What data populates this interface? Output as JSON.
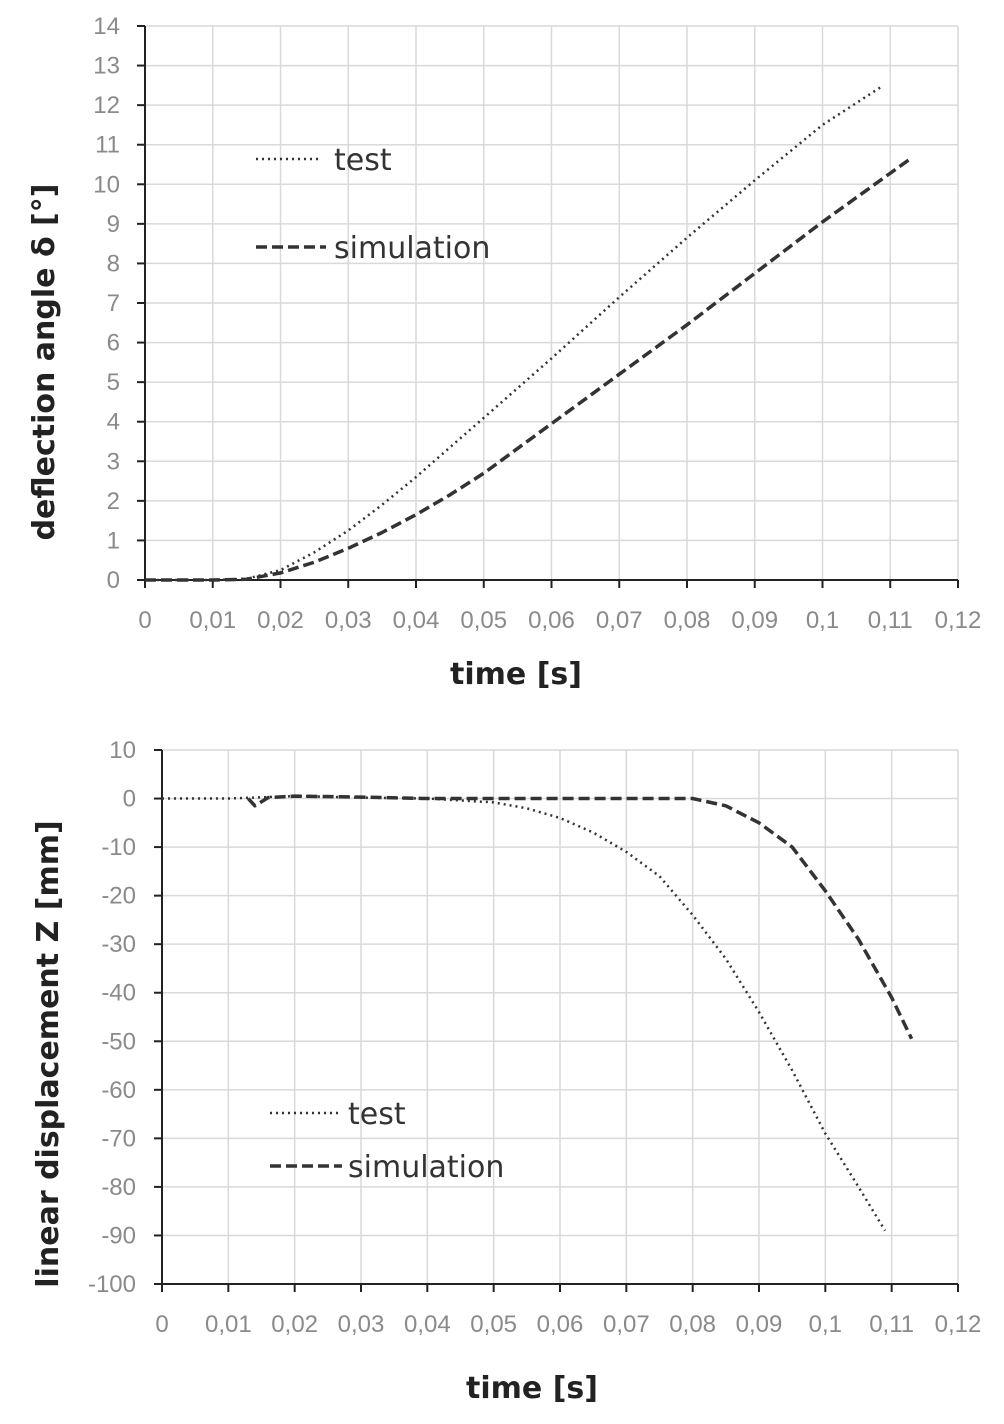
{
  "chart_data": [
    {
      "type": "line",
      "xlabel": "time [s]",
      "ylabel": "deflection angle δ [°]",
      "xlim": [
        0,
        0.12
      ],
      "ylim": [
        0,
        14
      ],
      "x_ticks": [
        "0",
        "0,01",
        "0,02",
        "0,03",
        "0,04",
        "0,05",
        "0,06",
        "0,07",
        "0,08",
        "0,09",
        "0,1",
        "0,11",
        "0,12"
      ],
      "y_ticks": [
        "0",
        "1",
        "2",
        "3",
        "4",
        "5",
        "6",
        "7",
        "8",
        "9",
        "10",
        "11",
        "12",
        "13",
        "14"
      ],
      "grid": true,
      "legend_position": "top-left",
      "series": [
        {
          "name": "test",
          "style": "dotted",
          "color": "#333333",
          "points": [
            [
              0,
              0
            ],
            [
              0.01,
              0
            ],
            [
              0.015,
              0.03
            ],
            [
              0.02,
              0.25
            ],
            [
              0.025,
              0.7
            ],
            [
              0.03,
              1.25
            ],
            [
              0.035,
              1.9
            ],
            [
              0.04,
              2.6
            ],
            [
              0.045,
              3.35
            ],
            [
              0.05,
              4.1
            ],
            [
              0.06,
              5.6
            ],
            [
              0.07,
              7.15
            ],
            [
              0.08,
              8.65
            ],
            [
              0.09,
              10.1
            ],
            [
              0.1,
              11.5
            ],
            [
              0.109,
              12.5
            ]
          ]
        },
        {
          "name": "simulation",
          "style": "dashed",
          "color": "#333333",
          "points": [
            [
              0,
              0
            ],
            [
              0.01,
              0
            ],
            [
              0.015,
              0.02
            ],
            [
              0.02,
              0.18
            ],
            [
              0.025,
              0.45
            ],
            [
              0.03,
              0.8
            ],
            [
              0.035,
              1.2
            ],
            [
              0.04,
              1.65
            ],
            [
              0.045,
              2.15
            ],
            [
              0.05,
              2.7
            ],
            [
              0.06,
              3.95
            ],
            [
              0.07,
              5.2
            ],
            [
              0.08,
              6.45
            ],
            [
              0.09,
              7.75
            ],
            [
              0.1,
              9.05
            ],
            [
              0.113,
              10.65
            ]
          ]
        }
      ]
    },
    {
      "type": "line",
      "xlabel": "time [s]",
      "ylabel": "linear displacement Z [mm]",
      "xlim": [
        0,
        0.12
      ],
      "ylim": [
        -100,
        10
      ],
      "x_ticks": [
        "0",
        "0,01",
        "0,02",
        "0,03",
        "0,04",
        "0,05",
        "0,06",
        "0,07",
        "0,08",
        "0,09",
        "0,1",
        "0,11",
        "0,12"
      ],
      "y_ticks": [
        "10",
        "0",
        "-10",
        "-20",
        "-30",
        "-40",
        "-50",
        "-60",
        "-70",
        "-80",
        "-90",
        "-100"
      ],
      "grid": true,
      "legend_position": "bottom-left",
      "series": [
        {
          "name": "test",
          "style": "dotted",
          "color": "#333333",
          "points": [
            [
              0,
              0
            ],
            [
              0.01,
              0
            ],
            [
              0.02,
              0.5
            ],
            [
              0.03,
              0.2
            ],
            [
              0.04,
              0
            ],
            [
              0.05,
              -0.8
            ],
            [
              0.055,
              -2
            ],
            [
              0.06,
              -4
            ],
            [
              0.065,
              -7
            ],
            [
              0.07,
              -11
            ],
            [
              0.075,
              -16
            ],
            [
              0.08,
              -24
            ],
            [
              0.085,
              -33
            ],
            [
              0.09,
              -44
            ],
            [
              0.095,
              -56
            ],
            [
              0.1,
              -69
            ],
            [
              0.105,
              -80
            ],
            [
              0.109,
              -89
            ]
          ]
        },
        {
          "name": "simulation",
          "style": "dashed",
          "color": "#333333",
          "points": [
            [
              0.013,
              0
            ],
            [
              0.014,
              -1.5
            ],
            [
              0.016,
              0.2
            ],
            [
              0.02,
              0.5
            ],
            [
              0.03,
              0.3
            ],
            [
              0.04,
              0
            ],
            [
              0.05,
              0
            ],
            [
              0.06,
              0
            ],
            [
              0.07,
              0
            ],
            [
              0.08,
              0
            ],
            [
              0.085,
              -1.5
            ],
            [
              0.09,
              -5
            ],
            [
              0.095,
              -10
            ],
            [
              0.1,
              -19
            ],
            [
              0.105,
              -29
            ],
            [
              0.11,
              -41
            ],
            [
              0.113,
              -49.5
            ]
          ]
        }
      ]
    }
  ]
}
